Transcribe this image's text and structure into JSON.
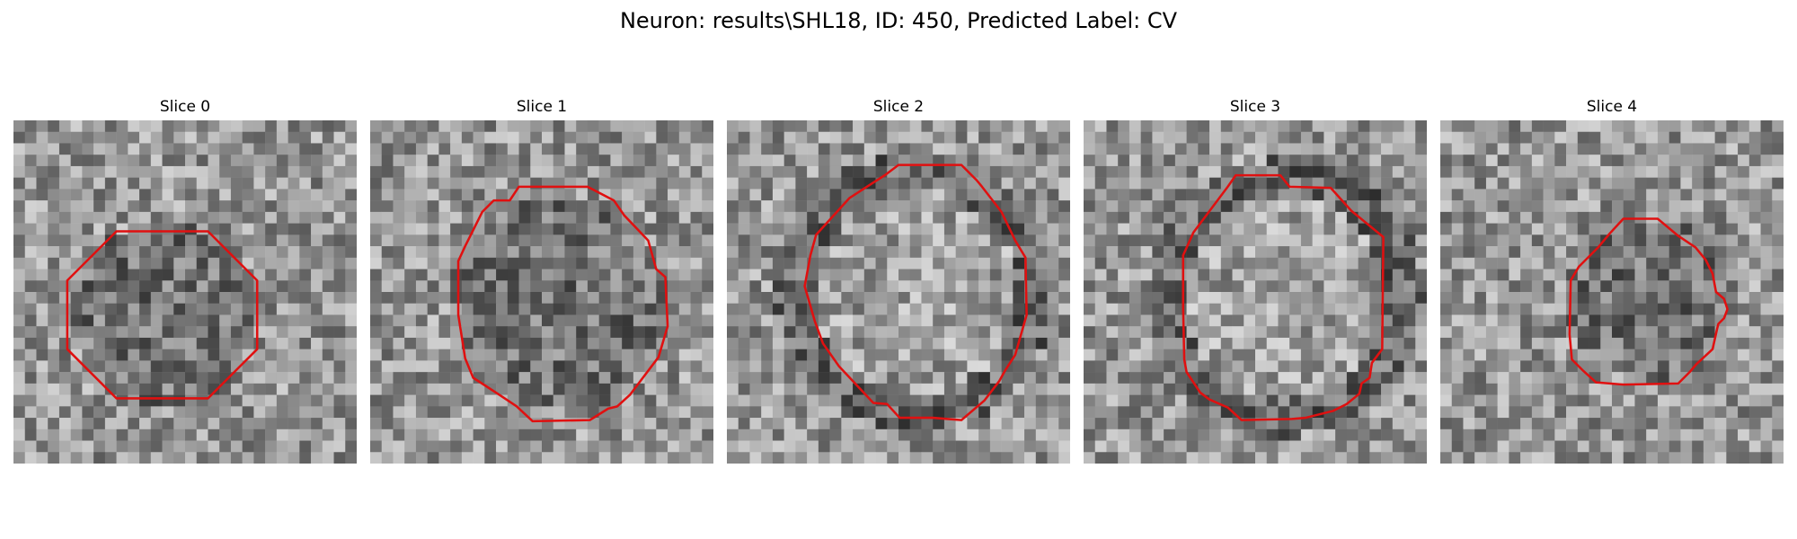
{
  "figure": {
    "title": "Neuron: results\\SHL18, ID: 450, Predicted Label: CV"
  },
  "slices": [
    {
      "title": "Slice 0"
    },
    {
      "title": "Slice 1"
    },
    {
      "title": "Slice 2"
    },
    {
      "title": "Slice 3"
    },
    {
      "title": "Slice 4"
    }
  ],
  "colors": {
    "contour": "#e01010",
    "background": "#ffffff"
  }
}
